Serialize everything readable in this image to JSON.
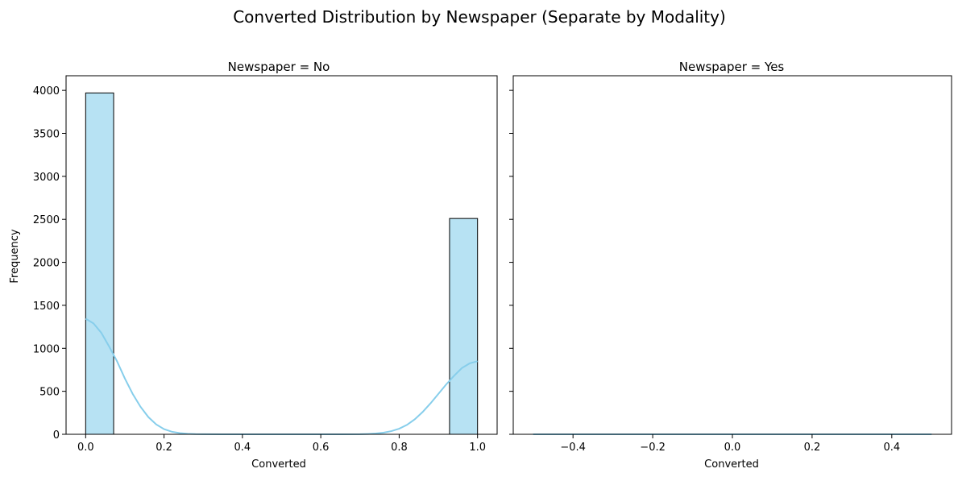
{
  "figure": {
    "suptitle": "Converted Distribution by Newspaper (Separate by Modality)"
  },
  "colors": {
    "bar_fill": "#87ceeb",
    "bar_edge": "#000000",
    "kde_line": "#87ceeb",
    "axes": "#000000"
  },
  "chart_data": [
    {
      "type": "bar",
      "title": "Newspaper = No",
      "xlabel": "Converted",
      "ylabel": "Frequency",
      "xlim": [
        -0.05,
        1.05
      ],
      "ylim": [
        0,
        4170
      ],
      "xticks": [
        0.0,
        0.2,
        0.4,
        0.6,
        0.8,
        1.0
      ],
      "xtick_labels": [
        "0.0",
        "0.2",
        "0.4",
        "0.6",
        "0.8",
        "1.0"
      ],
      "yticks": [
        0,
        500,
        1000,
        1500,
        2000,
        2500,
        3000,
        3500,
        4000
      ],
      "ytick_labels": [
        "0",
        "500",
        "1000",
        "1500",
        "2000",
        "2500",
        "3000",
        "3500",
        "4000"
      ],
      "grid": false,
      "bins": [
        {
          "start": 0.0,
          "end": 0.0714,
          "count": 3970
        },
        {
          "start": 0.9286,
          "end": 1.0,
          "count": 2510
        }
      ],
      "kde": {
        "x": [
          0.0,
          0.02,
          0.04,
          0.06,
          0.08,
          0.1,
          0.12,
          0.14,
          0.16,
          0.18,
          0.2,
          0.22,
          0.24,
          0.26,
          0.28,
          0.3,
          0.35,
          0.4,
          0.5,
          0.6,
          0.65,
          0.7,
          0.72,
          0.74,
          0.76,
          0.78,
          0.8,
          0.82,
          0.84,
          0.86,
          0.88,
          0.9,
          0.92,
          0.94,
          0.96,
          0.98,
          1.0
        ],
        "y": [
          1345,
          1290,
          1180,
          1020,
          850,
          650,
          470,
          320,
          200,
          115,
          60,
          30,
          14,
          6,
          2,
          1,
          0,
          0,
          0,
          0,
          0,
          1,
          4,
          9,
          19,
          37,
          65,
          110,
          175,
          260,
          360,
          470,
          580,
          680,
          770,
          825,
          850
        ]
      }
    },
    {
      "type": "bar",
      "title": "Newspaper = Yes",
      "xlabel": "Converted",
      "ylabel": "",
      "xlim": [
        -0.55,
        0.55
      ],
      "ylim": [
        0,
        4170
      ],
      "xticks": [
        -0.4,
        -0.2,
        0.0,
        0.2,
        0.4
      ],
      "xtick_labels": [
        "−0.4",
        "−0.2",
        "0.0",
        "0.2",
        "0.4"
      ],
      "yticks": [
        0,
        500,
        1000,
        1500,
        2000,
        2500,
        3000,
        3500,
        4000
      ],
      "grid": false,
      "baseline": {
        "x": [
          -0.5,
          0.5
        ],
        "y": 0
      },
      "bins": []
    }
  ]
}
